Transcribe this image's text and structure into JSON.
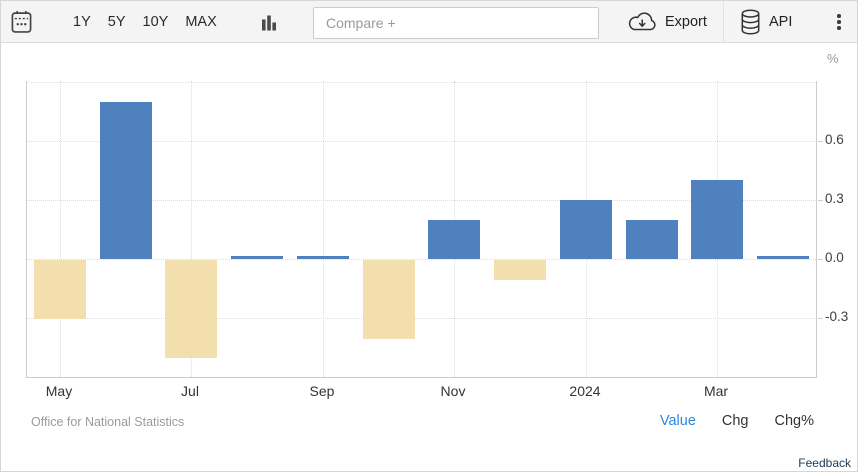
{
  "toolbar": {
    "ranges": [
      "1Y",
      "5Y",
      "10Y",
      "MAX"
    ],
    "compare_placeholder": "Compare +",
    "export_label": "Export",
    "api_label": "API",
    "icons": [
      "calendar-icon",
      "column-chart-icon",
      "cloud-download-icon",
      "database-icon",
      "kebab-menu-icon"
    ]
  },
  "chart": {
    "unit": "%",
    "y_ticks": [
      "0.6",
      "0.3",
      "0.0",
      "-0.3"
    ],
    "x_ticks": [
      "May",
      "Jul",
      "Sep",
      "Nov",
      "2024",
      "Mar"
    ]
  },
  "chart_data": {
    "type": "bar",
    "title": "",
    "unit": "%",
    "categories": [
      "May 2023",
      "Jun 2023",
      "Jul 2023",
      "Aug 2023",
      "Sep 2023",
      "Oct 2023",
      "Nov 2023",
      "Dec 2023",
      "Jan 2024",
      "Feb 2024",
      "Mar 2024",
      "Apr 2024"
    ],
    "values": [
      -0.3,
      0.8,
      -0.5,
      0.0,
      0.0,
      -0.4,
      0.2,
      -0.1,
      0.3,
      0.2,
      0.4,
      0.0
    ],
    "x_tick_labels": [
      "May",
      "Jul",
      "Sep",
      "Nov",
      "2024",
      "Mar"
    ],
    "y_tick_values": [
      0.6,
      0.3,
      0.0,
      -0.3
    ],
    "ylim": [
      -0.6,
      0.9
    ],
    "ylabel": "%",
    "grid": true,
    "legend": "none",
    "positive_color": "#4e81bd",
    "negative_color": "#f3deae"
  },
  "footer": {
    "source": "Office for National Statistics",
    "toggles": [
      {
        "label": "Value",
        "active": true
      },
      {
        "label": "Chg",
        "active": false
      },
      {
        "label": "Chg%",
        "active": false
      }
    ],
    "active_color": "#2e86de",
    "feedback": "Feedback"
  }
}
